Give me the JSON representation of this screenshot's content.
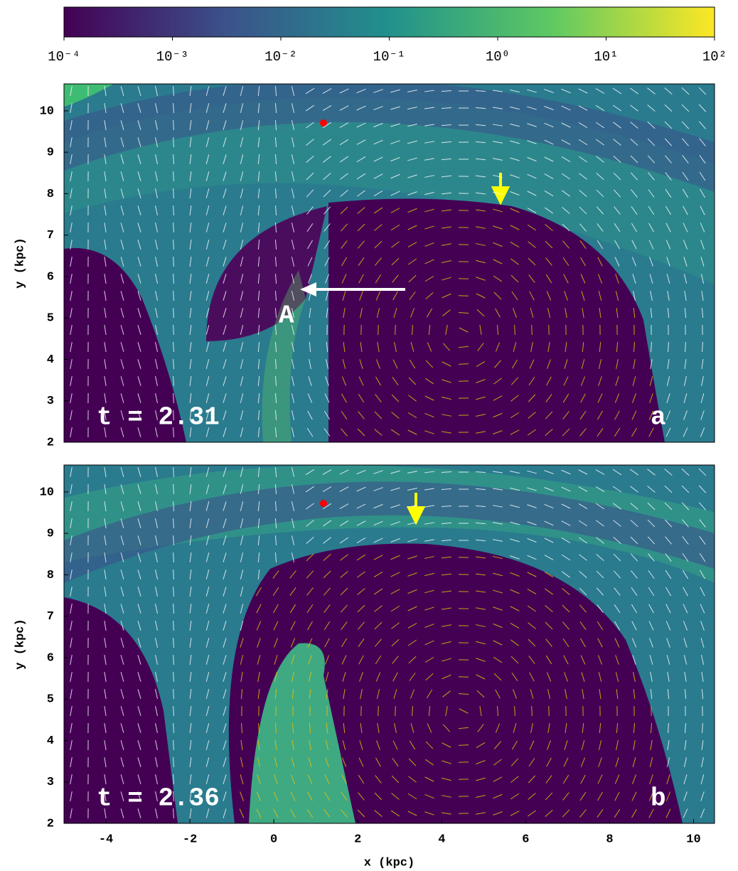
{
  "chart_data": [
    {
      "type": "colorbar",
      "log_scale": true,
      "xlim": [
        0.0001,
        100
      ],
      "xticks": [
        {
          "value": 0.0001,
          "label": "10⁻⁴"
        },
        {
          "value": 0.001,
          "label": "10⁻³"
        },
        {
          "value": 0.01,
          "label": "10⁻²"
        },
        {
          "value": 0.1,
          "label": "10⁻¹"
        },
        {
          "value": 1,
          "label": "10⁰"
        },
        {
          "value": 10,
          "label": "10¹"
        },
        {
          "value": 100,
          "label": "10²"
        }
      ],
      "colors": [
        "#440154",
        "#3b528b",
        "#21918c",
        "#5ec962",
        "#fde725"
      ]
    },
    {
      "type": "field",
      "ylabel": "y (kpc)",
      "time_label": "t = 2.31",
      "panel_label": "a",
      "feature_label": "A",
      "xlim": [
        -5,
        10.5
      ],
      "ylim": [
        2,
        10.65
      ],
      "yticks": [
        2,
        3,
        4,
        5,
        6,
        7,
        8,
        9,
        10
      ]
    },
    {
      "type": "field",
      "ylabel": "y (kpc)",
      "xlabel": "x (kpc)",
      "time_label": "t = 2.36",
      "panel_label": "b",
      "xlim": [
        -5,
        10.5
      ],
      "ylim": [
        2,
        10.65
      ],
      "xticks": [
        -4,
        -2,
        0,
        2,
        4,
        6,
        8,
        10
      ],
      "yticks": [
        2,
        3,
        4,
        5,
        6,
        7,
        8,
        9,
        10
      ]
    }
  ]
}
